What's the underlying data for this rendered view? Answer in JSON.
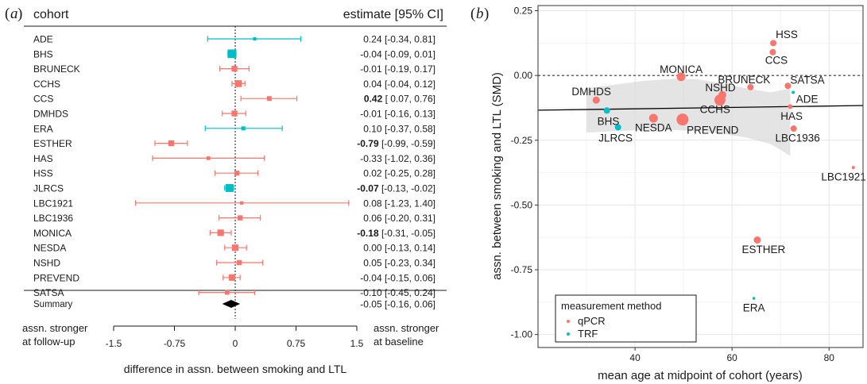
{
  "chart_data": [
    {
      "type": "forest",
      "panel_label": "a",
      "header_left": "cohort",
      "header_right": "estimate [95% CI]",
      "rows": [
        {
          "name": "ADE",
          "est": 0.24,
          "lo": -0.34,
          "hi": 0.81,
          "method": "TRF",
          "weight": 1,
          "bold": false,
          "text": "0.24 [-0.34,  0.81]"
        },
        {
          "name": "BHS",
          "est": -0.04,
          "lo": -0.09,
          "hi": 0.01,
          "method": "TRF",
          "weight": 4,
          "bold": false,
          "text": "-0.04 [-0.09,  0.01]"
        },
        {
          "name": "BRUNECK",
          "est": -0.01,
          "lo": -0.19,
          "hi": 0.17,
          "method": "qPCR",
          "weight": 2.4,
          "bold": false,
          "text": "-0.01 [-0.19,  0.17]"
        },
        {
          "name": "CCHS",
          "est": 0.04,
          "lo": -0.04,
          "hi": 0.12,
          "method": "qPCR",
          "weight": 3,
          "bold": false,
          "text": "0.04 [-0.04,  0.12]"
        },
        {
          "name": "CCS",
          "est": 0.42,
          "lo": 0.07,
          "hi": 0.76,
          "method": "qPCR",
          "weight": 1.8,
          "bold": true,
          "text": "0.42 [ 0.07,  0.76]"
        },
        {
          "name": "DMHDS",
          "est": -0.01,
          "lo": -0.16,
          "hi": 0.13,
          "method": "qPCR",
          "weight": 2.4,
          "bold": false,
          "text": "-0.01 [-0.16,  0.13]"
        },
        {
          "name": "ERA",
          "est": 0.1,
          "lo": -0.37,
          "hi": 0.58,
          "method": "TRF",
          "weight": 1.4,
          "bold": false,
          "text": "0.10 [-0.37,  0.58]"
        },
        {
          "name": "ESTHER",
          "est": -0.79,
          "lo": -0.99,
          "hi": -0.59,
          "method": "qPCR",
          "weight": 2.4,
          "bold": true,
          "text": "-0.79 [-0.99, -0.59]"
        },
        {
          "name": "HAS",
          "est": -0.33,
          "lo": -1.02,
          "hi": 0.36,
          "method": "qPCR",
          "weight": 1.2,
          "bold": false,
          "text": "-0.33 [-1.02,  0.36]"
        },
        {
          "name": "HSS",
          "est": 0.02,
          "lo": -0.25,
          "hi": 0.28,
          "method": "qPCR",
          "weight": 1.9,
          "bold": false,
          "text": "0.02 [-0.25,  0.28]"
        },
        {
          "name": "JLRCS",
          "est": -0.07,
          "lo": -0.13,
          "hi": -0.02,
          "method": "TRF",
          "weight": 3.6,
          "bold": true,
          "text": "-0.07 [-0.13, -0.02]"
        },
        {
          "name": "LBC1921",
          "est": 0.08,
          "lo": -1.23,
          "hi": 1.4,
          "method": "qPCR",
          "weight": 1,
          "bold": false,
          "text": "0.08 [-1.23,  1.40]"
        },
        {
          "name": "LBC1936",
          "est": 0.06,
          "lo": -0.2,
          "hi": 0.31,
          "method": "qPCR",
          "weight": 2,
          "bold": false,
          "text": "0.06 [-0.20,  0.31]"
        },
        {
          "name": "MONICA",
          "est": -0.18,
          "lo": -0.31,
          "hi": -0.05,
          "method": "qPCR",
          "weight": 2.8,
          "bold": true,
          "text": "-0.18 [-0.31, -0.05]"
        },
        {
          "name": "NESDA",
          "est": 0.0,
          "lo": -0.13,
          "hi": 0.14,
          "method": "qPCR",
          "weight": 2.8,
          "bold": false,
          "text": "0.00 [-0.13,  0.14]"
        },
        {
          "name": "NSHD",
          "est": 0.05,
          "lo": -0.23,
          "hi": 0.34,
          "method": "qPCR",
          "weight": 2,
          "bold": false,
          "text": "0.05 [-0.23,  0.34]"
        },
        {
          "name": "PREVEND",
          "est": -0.04,
          "lo": -0.15,
          "hi": 0.06,
          "method": "qPCR",
          "weight": 2.8,
          "bold": false,
          "text": "-0.04 [-0.15,  0.06]"
        },
        {
          "name": "SATSA",
          "est": -0.1,
          "lo": -0.45,
          "hi": 0.24,
          "method": "qPCR",
          "weight": 1.7,
          "bold": false,
          "text": "-0.10 [-0.45,  0.24]"
        }
      ],
      "summary": {
        "name": "Summary",
        "est": -0.05,
        "lo": -0.16,
        "hi": 0.06,
        "text": "-0.05 [-0.16,  0.06]"
      },
      "x_ticks": [
        -1.5,
        -0.75,
        0,
        0.75,
        1.5
      ],
      "x_tick_labels": [
        "-1.5",
        "-0.75",
        "0",
        "0.75",
        "1.5"
      ],
      "xlim": [
        -1.5,
        1.5
      ],
      "xlabel": "difference in assn. between smoking and LTL",
      "left_note": [
        "assn. stronger",
        "at follow-up"
      ],
      "right_note": [
        "assn. stronger",
        "at baseline"
      ]
    },
    {
      "type": "scatter",
      "panel_label": "b",
      "xlabel": "mean age at midpoint of cohort (years)",
      "ylabel": "assn. between smoking and LTL (SMD)",
      "xlim": [
        20,
        87
      ],
      "ylim": [
        -1.05,
        0.27
      ],
      "x_ticks": [
        40,
        60,
        80
      ],
      "x_tick_labels": [
        "40",
        "60",
        "80"
      ],
      "y_ticks": [
        0.25,
        0,
        -0.25,
        -0.5,
        -0.75,
        -1
      ],
      "y_tick_labels": [
        "0.25",
        "0.00",
        "-0.25",
        "-0.50",
        "-0.75",
        "-1.00"
      ],
      "grid": true,
      "reference_line_y": 0,
      "regression": {
        "x0": 20,
        "y0": -0.134,
        "x1": 87,
        "y1": -0.116
      },
      "band": {
        "upper": [
          [
            30,
            -0.05
          ],
          [
            36,
            -0.035
          ],
          [
            42,
            -0.02
          ],
          [
            48,
            -0.013
          ],
          [
            53,
            -0.015
          ],
          [
            58,
            -0.03
          ],
          [
            63,
            -0.05
          ],
          [
            68,
            -0.065
          ],
          [
            72,
            -0.05
          ]
        ],
        "lower": [
          [
            30,
            -0.22
          ],
          [
            36,
            -0.215
          ],
          [
            42,
            -0.21
          ],
          [
            48,
            -0.21
          ],
          [
            53,
            -0.215
          ],
          [
            58,
            -0.225
          ],
          [
            63,
            -0.24
          ],
          [
            68,
            -0.265
          ],
          [
            72,
            -0.31
          ]
        ]
      },
      "legend_title": "measurement method",
      "legend_position": "bottom-left",
      "legend": [
        {
          "label": "qPCR",
          "color": "#F8766D"
        },
        {
          "label": "TRF",
          "color": "#00BFC4"
        }
      ],
      "points": [
        {
          "label": "HSS",
          "x": 68.5,
          "y": 0.125,
          "method": "qPCR",
          "size": 4,
          "lx": 69,
          "ly": 0.16,
          "anchor": "start"
        },
        {
          "label": "CCS",
          "x": 68.4,
          "y": 0.09,
          "method": "qPCR",
          "size": 4,
          "lx": 66.8,
          "ly": 0.06,
          "anchor": "start"
        },
        {
          "label": "MONICA",
          "x": 49.5,
          "y": -0.005,
          "method": "qPCR",
          "size": 5.5,
          "lx": 49.5,
          "ly": 0.025,
          "anchor": "middle"
        },
        {
          "label": "SATSA",
          "x": 71.5,
          "y": -0.04,
          "method": "qPCR",
          "size": 4,
          "lx": 72,
          "ly": -0.017,
          "anchor": "start"
        },
        {
          "label": "BRUNECK",
          "x": 63.8,
          "y": -0.045,
          "method": "qPCR",
          "size": 4,
          "lx": 62.5,
          "ly": -0.015,
          "anchor": "middle"
        },
        {
          "label": "NSHD",
          "x": 58,
          "y": -0.075,
          "method": "qPCR",
          "size": 5,
          "lx": 57.6,
          "ly": -0.045,
          "anchor": "middle"
        },
        {
          "label": "ADE",
          "x": 72.6,
          "y": -0.065,
          "method": "TRF",
          "size": 2,
          "lx": 73.2,
          "ly": -0.09,
          "anchor": "start"
        },
        {
          "label": "CCHS",
          "x": 57.5,
          "y": -0.095,
          "method": "qPCR",
          "size": 7,
          "lx": 56.5,
          "ly": -0.13,
          "anchor": "middle"
        },
        {
          "label": "DMHDS",
          "x": 32,
          "y": -0.095,
          "method": "qPCR",
          "size": 4.5,
          "lx": 31,
          "ly": -0.06,
          "anchor": "middle"
        },
        {
          "label": "HAS",
          "x": 72,
          "y": -0.12,
          "method": "qPCR",
          "size": 3,
          "lx": 70,
          "ly": -0.155,
          "anchor": "start"
        },
        {
          "label": "BHS",
          "x": 34.2,
          "y": -0.135,
          "method": "TRF",
          "size": 4,
          "lx": 34.5,
          "ly": -0.175,
          "anchor": "middle"
        },
        {
          "label": "NESDA",
          "x": 43.8,
          "y": -0.165,
          "method": "qPCR",
          "size": 5.5,
          "lx": 43.8,
          "ly": -0.2,
          "anchor": "middle"
        },
        {
          "label": "PREVEND",
          "x": 49.8,
          "y": -0.17,
          "method": "qPCR",
          "size": 7.5,
          "lx": 56,
          "ly": -0.21,
          "anchor": "middle"
        },
        {
          "label": "JLRCS",
          "x": 36.5,
          "y": -0.2,
          "method": "TRF",
          "size": 4,
          "lx": 36,
          "ly": -0.24,
          "anchor": "middle"
        },
        {
          "label": "LBC1936",
          "x": 72.7,
          "y": -0.205,
          "method": "qPCR",
          "size": 4,
          "lx": 73.5,
          "ly": -0.24,
          "anchor": "middle"
        },
        {
          "label": "LBC1921",
          "x": 85,
          "y": -0.355,
          "method": "qPCR",
          "size": 2,
          "lx": 83,
          "ly": -0.39,
          "anchor": "middle"
        },
        {
          "label": "ESTHER",
          "x": 65.2,
          "y": -0.635,
          "method": "qPCR",
          "size": 4.5,
          "lx": 66.5,
          "ly": -0.67,
          "anchor": "middle"
        },
        {
          "label": "ERA",
          "x": 64.5,
          "y": -0.86,
          "method": "TRF",
          "size": 1.8,
          "lx": 64.5,
          "ly": -0.895,
          "anchor": "middle"
        }
      ]
    }
  ]
}
